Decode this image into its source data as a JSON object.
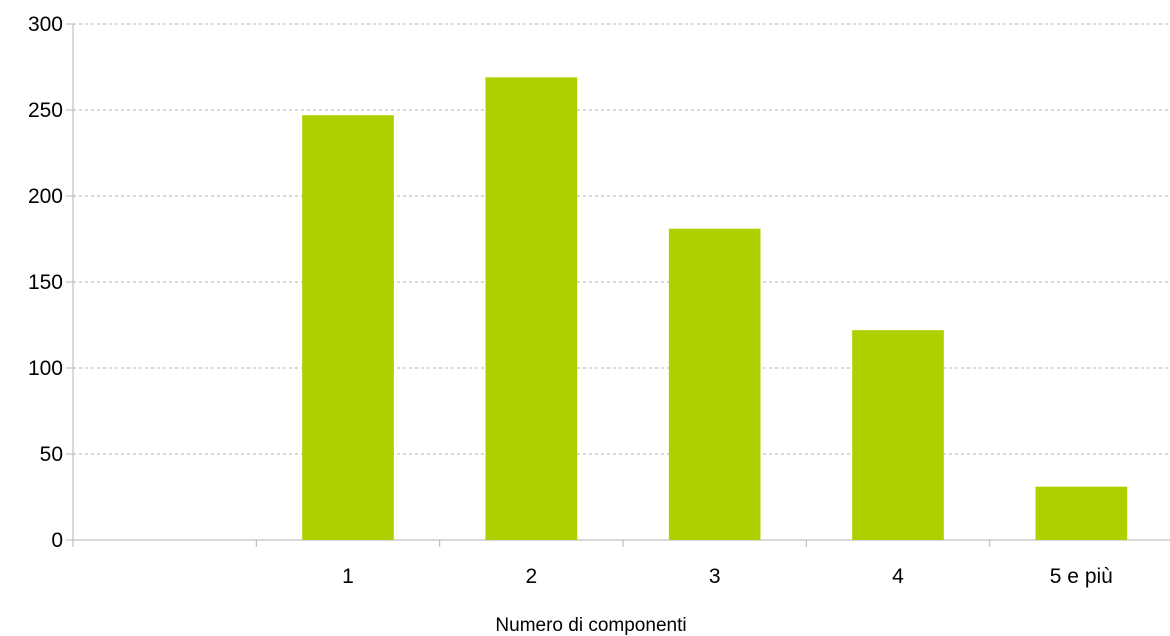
{
  "chart_data": {
    "type": "bar",
    "categories": [
      "",
      "1",
      "2",
      "3",
      "4",
      "5 e più"
    ],
    "values": [
      null,
      247,
      269,
      181,
      122,
      31
    ],
    "title": "",
    "xlabel": "Numero di componenti",
    "ylabel": "",
    "ylim": [
      0,
      300
    ],
    "yticks": [
      0,
      50,
      100,
      150,
      200,
      250,
      300
    ],
    "grid": true,
    "legend": "none",
    "bar_color": "#afd000",
    "grid_color": "#b3b3b3",
    "axis_color": "#b3b3b3"
  }
}
